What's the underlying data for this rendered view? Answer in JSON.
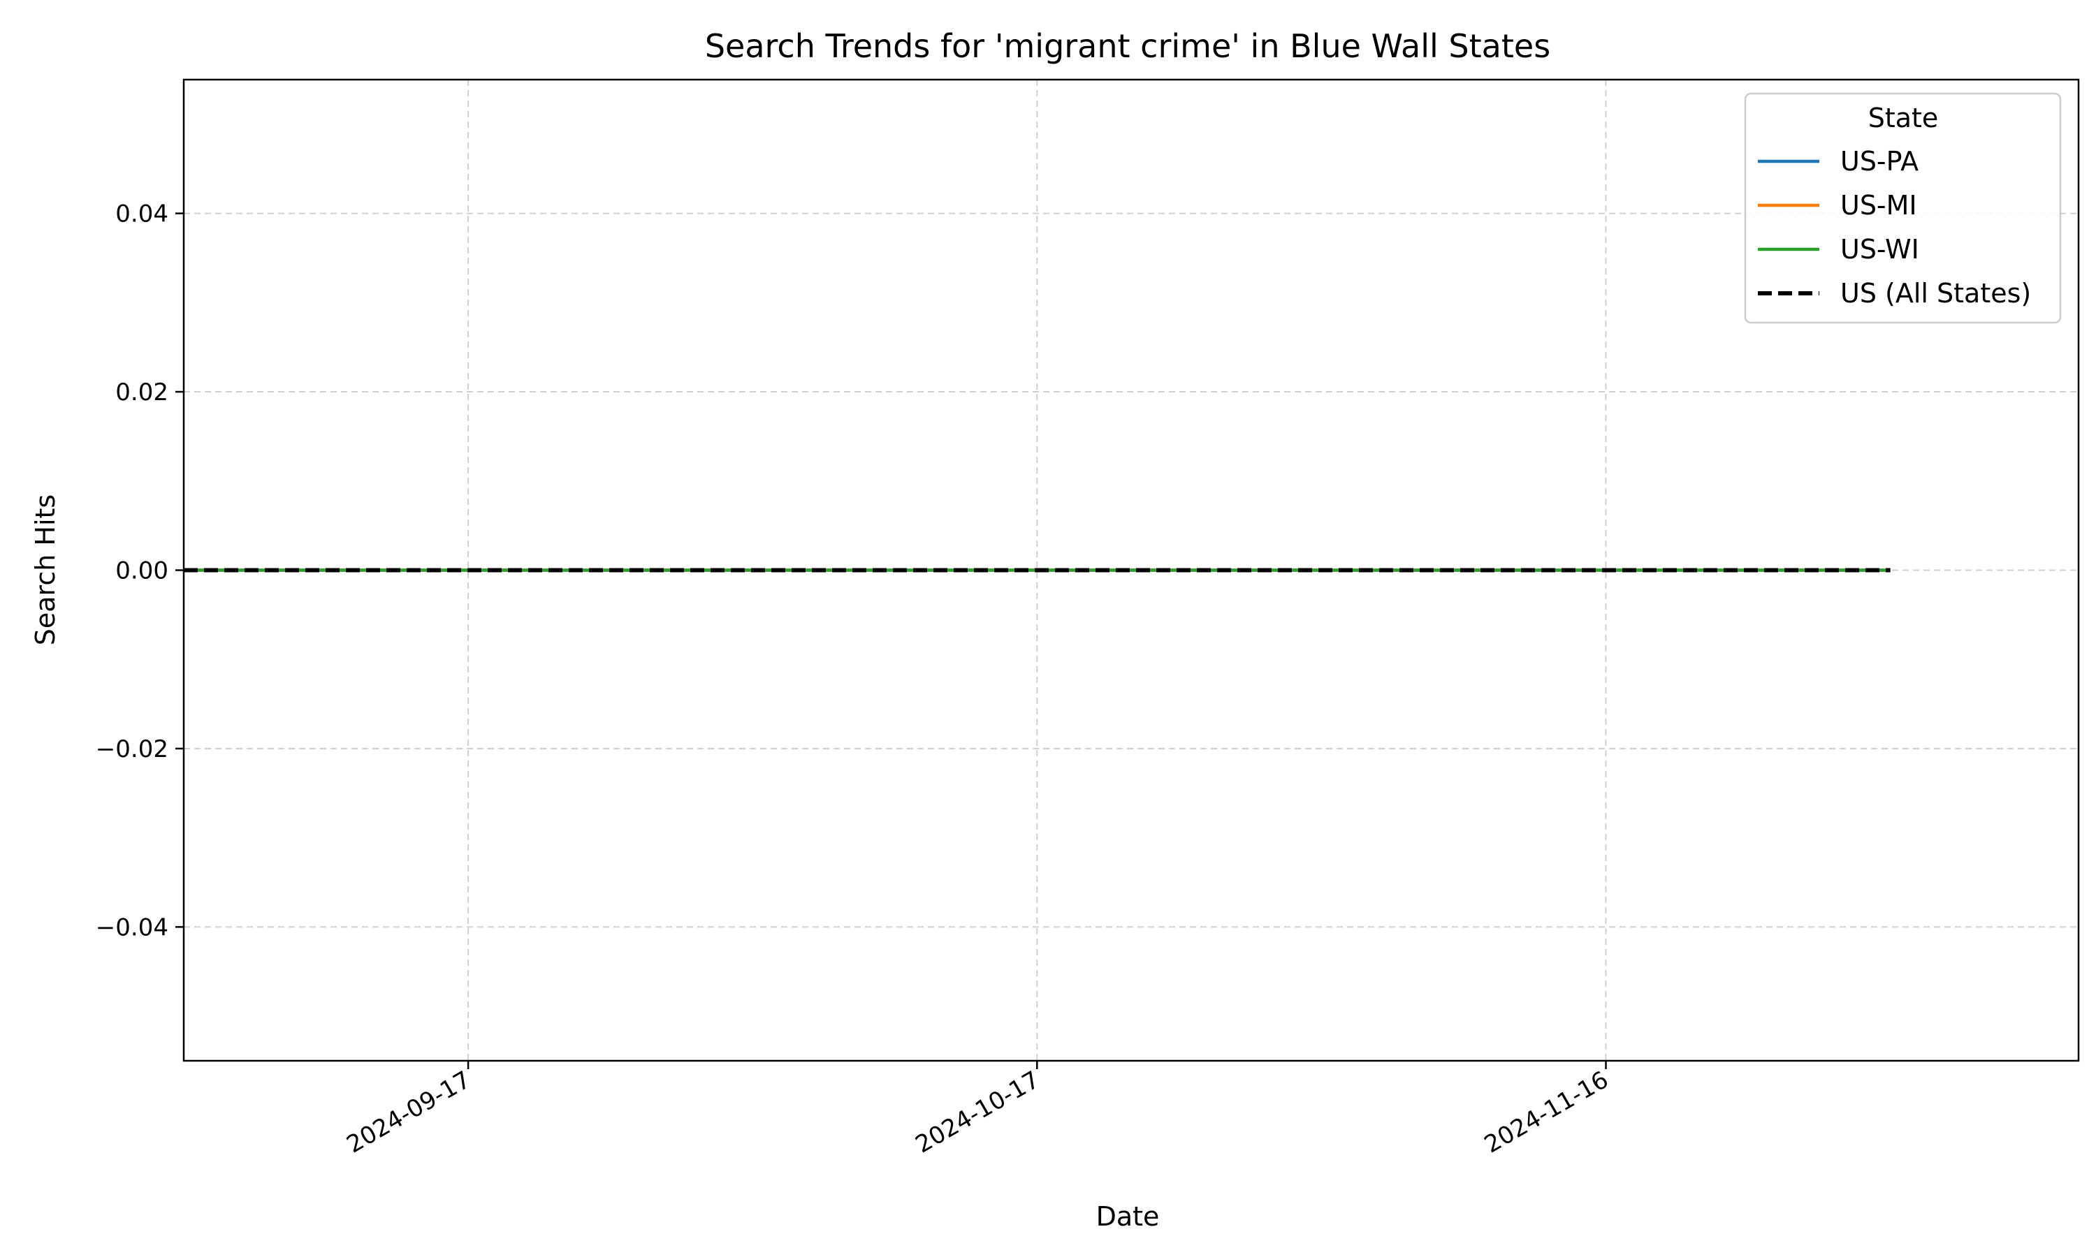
{
  "chart_data": {
    "type": "line",
    "title": "Search Trends for 'migrant crime' in Blue Wall States",
    "xlabel": "Date",
    "ylabel": "Search Hits",
    "x_range": [
      "2024-09-02",
      "2024-12-10"
    ],
    "x_ticks": [
      "2024-09-17",
      "2024-10-17",
      "2024-11-16"
    ],
    "y_ticks": [
      0.04,
      0.02,
      0.0,
      -0.02,
      -0.04
    ],
    "y_tick_labels": [
      "0.04",
      "0.02",
      "0.00",
      "−0.02",
      "−0.04"
    ],
    "ylim": [
      -0.055,
      0.055
    ],
    "grid": true,
    "legend": {
      "title": "State",
      "placement": "top-right"
    },
    "series": [
      {
        "name": "US-PA",
        "color": "#1f77b4",
        "style": "solid",
        "points": [
          [
            "2024-09-02",
            0
          ],
          [
            "2024-12-01",
            0
          ]
        ]
      },
      {
        "name": "US-MI",
        "color": "#ff7f0e",
        "style": "solid",
        "points": [
          [
            "2024-09-02",
            0
          ],
          [
            "2024-12-01",
            0
          ]
        ]
      },
      {
        "name": "US-WI",
        "color": "#2ca02c",
        "style": "solid",
        "points": [
          [
            "2024-09-02",
            0
          ],
          [
            "2024-12-01",
            0
          ]
        ]
      },
      {
        "name": "US (All States)",
        "color": "#000000",
        "style": "dashed",
        "points": [
          [
            "2024-09-02",
            0
          ],
          [
            "2024-12-01",
            0
          ]
        ]
      }
    ]
  }
}
